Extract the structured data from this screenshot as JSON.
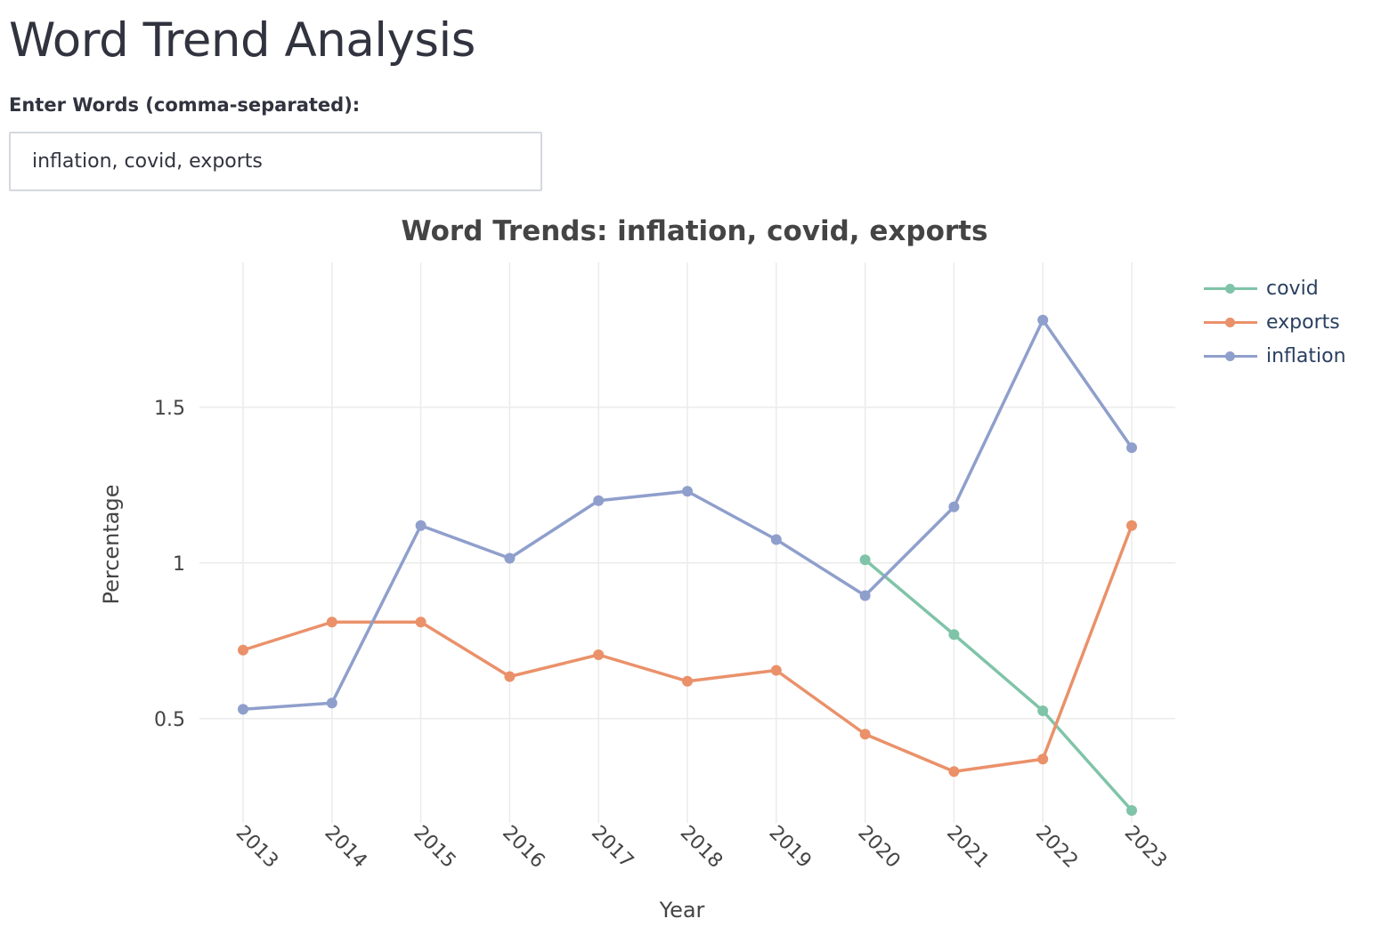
{
  "app": {
    "title": "Word Trend Analysis"
  },
  "input": {
    "label": "Enter Words (comma-separated):",
    "value": "inflation, covid, exports"
  },
  "colors": {
    "covid": "#7fc4a8",
    "exports": "#ea916a",
    "inflation": "#8f9fcc",
    "grid": "#ebebeb",
    "text": "#2a3f5f"
  },
  "chart_data": {
    "type": "line",
    "title": "Word Trends: inflation, covid, exports",
    "xlabel": "Year",
    "ylabel": "Percentage",
    "x": [
      "2013",
      "2014",
      "2015",
      "2016",
      "2017",
      "2018",
      "2019",
      "2020",
      "2021",
      "2022",
      "2023"
    ],
    "y_ticks": [
      0.5,
      1,
      1.5
    ],
    "y_tick_labels": [
      "0.5",
      "1",
      "1.5"
    ],
    "ylim": [
      0.165,
      1.965
    ],
    "grid": true,
    "legend_position": "top-right",
    "series": [
      {
        "name": "covid",
        "color": "#7fc4a8",
        "x": [
          "2020",
          "2021",
          "2022",
          "2023"
        ],
        "values": [
          1.01,
          0.77,
          0.525,
          0.205
        ]
      },
      {
        "name": "exports",
        "color": "#ea916a",
        "x": [
          "2013",
          "2014",
          "2015",
          "2016",
          "2017",
          "2018",
          "2019",
          "2020",
          "2021",
          "2022",
          "2023"
        ],
        "values": [
          0.72,
          0.81,
          0.81,
          0.635,
          0.705,
          0.62,
          0.655,
          0.45,
          0.33,
          0.37,
          1.12
        ]
      },
      {
        "name": "inflation",
        "color": "#8f9fcc",
        "x": [
          "2013",
          "2014",
          "2015",
          "2016",
          "2017",
          "2018",
          "2019",
          "2020",
          "2021",
          "2022",
          "2023"
        ],
        "values": [
          0.53,
          0.55,
          1.12,
          1.015,
          1.2,
          1.23,
          1.075,
          0.895,
          1.18,
          1.78,
          1.37
        ]
      }
    ]
  }
}
